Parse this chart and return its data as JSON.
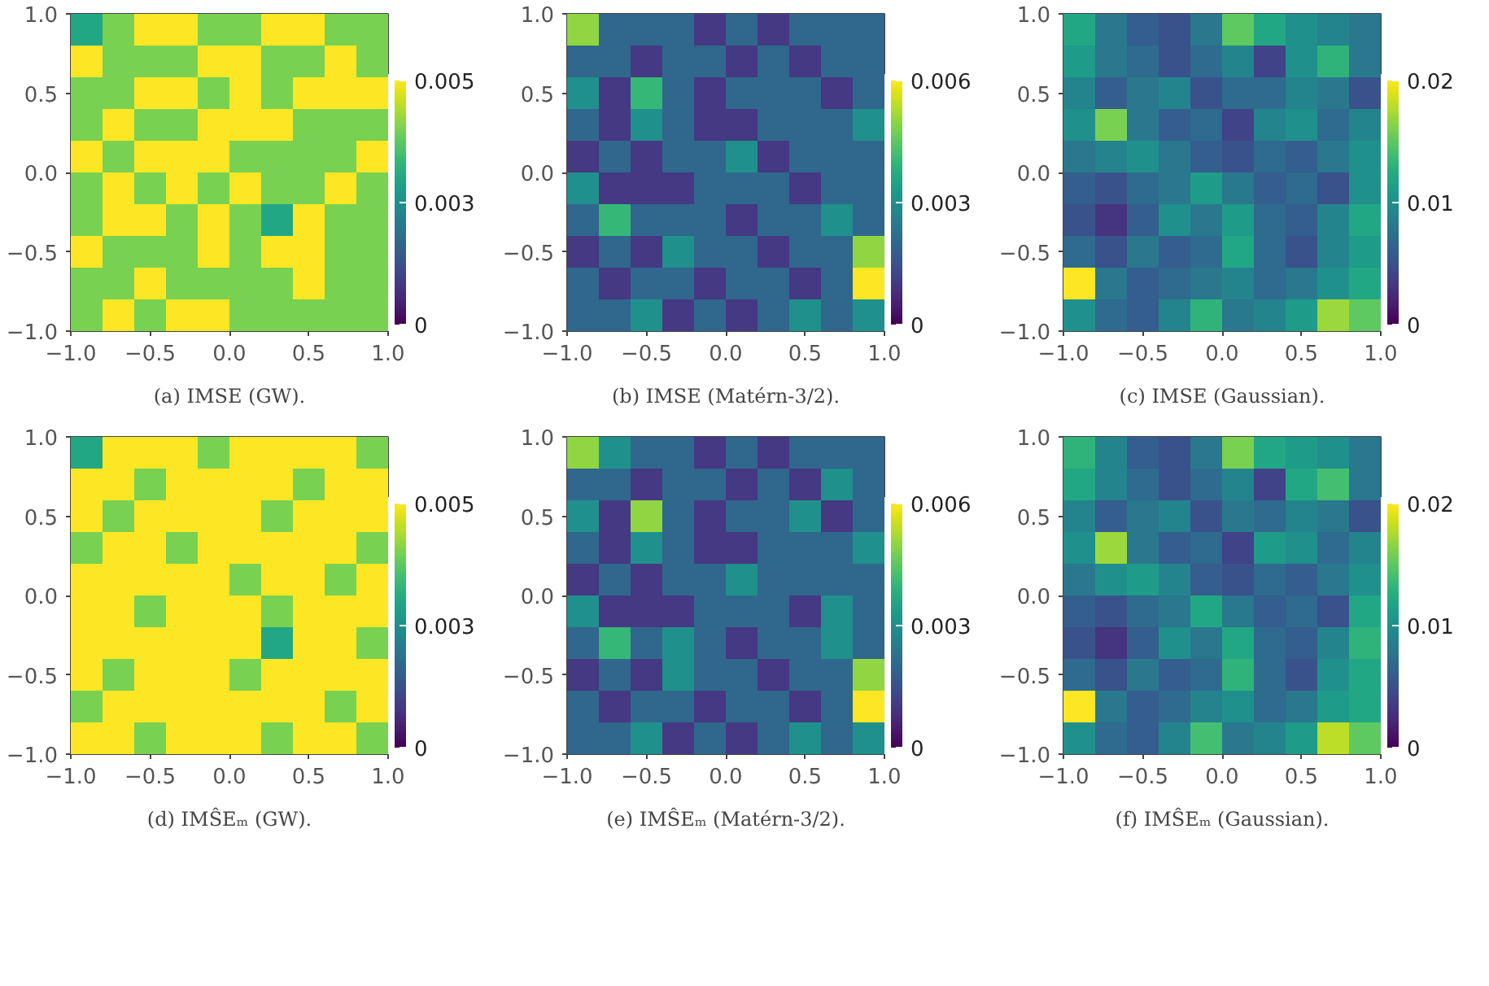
{
  "chart_data": [
    {
      "type": "heatmap",
      "title": "(a) IMSE (GW).",
      "xlim": [
        -1,
        1
      ],
      "ylim": [
        -1,
        1
      ],
      "xticks": [
        {
          "value": -1,
          "label": "−1.0"
        },
        {
          "value": -0.5,
          "label": "−0.5"
        },
        {
          "value": 0,
          "label": "0.0"
        },
        {
          "value": 0.5,
          "label": "0.5"
        },
        {
          "value": 1,
          "label": "1.0"
        }
      ],
      "yticks": [
        {
          "value": -1,
          "label": "−1.0"
        },
        {
          "value": -0.5,
          "label": "−0.5"
        },
        {
          "value": 0,
          "label": "0.0"
        },
        {
          "value": 0.5,
          "label": "0.5"
        },
        {
          "value": 1,
          "label": "1.0"
        }
      ],
      "clim": [
        0,
        0.005
      ],
      "cticks": [
        0,
        {
          "value": 0.0025,
          "label": "0.003"
        },
        0.005
      ],
      "x": [
        -0.9,
        -0.7,
        -0.5,
        -0.3,
        -0.1,
        0.1,
        0.3,
        0.5,
        0.7,
        0.9
      ],
      "y": [
        0.9,
        0.7,
        0.5,
        0.3,
        0.1,
        -0.1,
        -0.3,
        -0.5,
        -0.7,
        -0.9
      ],
      "cells": [
        [
          0.003,
          0.004,
          0.005,
          0.005,
          0.004,
          0.004,
          0.005,
          0.005,
          0.004,
          0.004
        ],
        [
          0.005,
          0.004,
          0.004,
          0.004,
          0.005,
          0.005,
          0.004,
          0.004,
          0.005,
          0.004
        ],
        [
          0.004,
          0.004,
          0.005,
          0.005,
          0.004,
          0.005,
          0.004,
          0.005,
          0.005,
          0.005
        ],
        [
          0.004,
          0.005,
          0.004,
          0.004,
          0.005,
          0.005,
          0.005,
          0.004,
          0.004,
          0.004
        ],
        [
          0.005,
          0.004,
          0.005,
          0.005,
          0.005,
          0.004,
          0.004,
          0.004,
          0.004,
          0.005
        ],
        [
          0.004,
          0.005,
          0.004,
          0.005,
          0.004,
          0.005,
          0.004,
          0.004,
          0.005,
          0.004
        ],
        [
          0.004,
          0.005,
          0.005,
          0.004,
          0.005,
          0.004,
          0.003,
          0.005,
          0.004,
          0.004
        ],
        [
          0.005,
          0.004,
          0.004,
          0.004,
          0.005,
          0.004,
          0.005,
          0.005,
          0.004,
          0.004
        ],
        [
          0.004,
          0.004,
          0.005,
          0.004,
          0.004,
          0.004,
          0.004,
          0.005,
          0.004,
          0.004
        ],
        [
          0.004,
          0.005,
          0.004,
          0.005,
          0.005,
          0.004,
          0.004,
          0.004,
          0.004,
          0.004
        ]
      ]
    },
    {
      "type": "heatmap",
      "title": "(b) IMSE (Matérn-3/2).",
      "xlim": [
        -1,
        1
      ],
      "ylim": [
        -1,
        1
      ],
      "xticks": [
        {
          "value": -1,
          "label": "−1.0"
        },
        {
          "value": -0.5,
          "label": "−0.5"
        },
        {
          "value": 0,
          "label": "0.0"
        },
        {
          "value": 0.5,
          "label": "0.5"
        },
        {
          "value": 1,
          "label": "1.0"
        }
      ],
      "yticks": [
        {
          "value": -1,
          "label": "−1.0"
        },
        {
          "value": -0.5,
          "label": "−0.5"
        },
        {
          "value": 0,
          "label": "0.0"
        },
        {
          "value": 0.5,
          "label": "0.5"
        },
        {
          "value": 1,
          "label": "1.0"
        }
      ],
      "clim": [
        0,
        0.006
      ],
      "cticks": [
        0,
        0.003,
        0.006
      ],
      "x": [
        -0.9,
        -0.7,
        -0.5,
        -0.3,
        -0.1,
        0.1,
        0.3,
        0.5,
        0.7,
        0.9
      ],
      "y": [
        0.9,
        0.7,
        0.5,
        0.3,
        0.1,
        -0.1,
        -0.3,
        -0.5,
        -0.7,
        -0.9
      ],
      "cells": [
        [
          0.005,
          0.002,
          0.002,
          0.002,
          0.001,
          0.002,
          0.001,
          0.002,
          0.002,
          0.002
        ],
        [
          0.002,
          0.002,
          0.001,
          0.002,
          0.002,
          0.001,
          0.002,
          0.001,
          0.002,
          0.002
        ],
        [
          0.003,
          0.001,
          0.004,
          0.002,
          0.001,
          0.002,
          0.002,
          0.002,
          0.001,
          0.002
        ],
        [
          0.002,
          0.001,
          0.003,
          0.002,
          0.001,
          0.001,
          0.002,
          0.002,
          0.002,
          0.003
        ],
        [
          0.001,
          0.002,
          0.001,
          0.002,
          0.002,
          0.003,
          0.001,
          0.002,
          0.002,
          0.002
        ],
        [
          0.003,
          0.001,
          0.001,
          0.001,
          0.002,
          0.002,
          0.002,
          0.001,
          0.002,
          0.002
        ],
        [
          0.002,
          0.004,
          0.002,
          0.002,
          0.002,
          0.001,
          0.002,
          0.002,
          0.003,
          0.002
        ],
        [
          0.001,
          0.002,
          0.001,
          0.003,
          0.002,
          0.002,
          0.001,
          0.002,
          0.002,
          0.005
        ],
        [
          0.002,
          0.001,
          0.002,
          0.002,
          0.001,
          0.002,
          0.002,
          0.001,
          0.002,
          0.006
        ],
        [
          0.002,
          0.002,
          0.003,
          0.001,
          0.002,
          0.001,
          0.002,
          0.003,
          0.002,
          0.003
        ]
      ]
    },
    {
      "type": "heatmap",
      "title": "(c) IMSE (Gaussian).",
      "xlim": [
        -1,
        1
      ],
      "ylim": [
        -1,
        1
      ],
      "xticks": [
        {
          "value": -1,
          "label": "−1.0"
        },
        {
          "value": -0.5,
          "label": "−0.5"
        },
        {
          "value": 0,
          "label": "0.0"
        },
        {
          "value": 0.5,
          "label": "0.5"
        },
        {
          "value": 1,
          "label": "1.0"
        }
      ],
      "yticks": [
        {
          "value": -1,
          "label": "−1.0"
        },
        {
          "value": -0.5,
          "label": "−0.5"
        },
        {
          "value": 0,
          "label": "0.0"
        },
        {
          "value": 0.5,
          "label": "0.5"
        },
        {
          "value": 1,
          "label": "1.0"
        }
      ],
      "clim": [
        0,
        0.02
      ],
      "cticks": [
        0,
        0.01,
        0.02
      ],
      "x": [
        -0.9,
        -0.7,
        -0.5,
        -0.3,
        -0.1,
        0.1,
        0.3,
        0.5,
        0.7,
        0.9
      ],
      "y": [
        0.9,
        0.7,
        0.5,
        0.3,
        0.1,
        -0.1,
        -0.3,
        -0.5,
        -0.7,
        -0.9
      ],
      "cells": [
        [
          0.012,
          0.008,
          0.006,
          0.005,
          0.008,
          0.015,
          0.012,
          0.01,
          0.009,
          0.008
        ],
        [
          0.011,
          0.008,
          0.007,
          0.005,
          0.007,
          0.009,
          0.004,
          0.01,
          0.013,
          0.008
        ],
        [
          0.009,
          0.006,
          0.008,
          0.009,
          0.005,
          0.007,
          0.007,
          0.009,
          0.008,
          0.005
        ],
        [
          0.01,
          0.016,
          0.008,
          0.006,
          0.007,
          0.004,
          0.009,
          0.01,
          0.007,
          0.009
        ],
        [
          0.008,
          0.009,
          0.01,
          0.008,
          0.006,
          0.005,
          0.007,
          0.006,
          0.008,
          0.01
        ],
        [
          0.006,
          0.005,
          0.007,
          0.008,
          0.011,
          0.008,
          0.006,
          0.007,
          0.005,
          0.01
        ],
        [
          0.005,
          0.003,
          0.006,
          0.01,
          0.008,
          0.011,
          0.007,
          0.006,
          0.009,
          0.012
        ],
        [
          0.007,
          0.005,
          0.008,
          0.006,
          0.007,
          0.012,
          0.007,
          0.005,
          0.009,
          0.011
        ],
        [
          0.02,
          0.008,
          0.006,
          0.007,
          0.008,
          0.009,
          0.007,
          0.008,
          0.01,
          0.012
        ],
        [
          0.01,
          0.007,
          0.006,
          0.009,
          0.013,
          0.008,
          0.009,
          0.011,
          0.017,
          0.015
        ]
      ]
    },
    {
      "type": "heatmap",
      "title": "(d) IMŜEₘ (GW).",
      "xlim": [
        -1,
        1
      ],
      "ylim": [
        -1,
        1
      ],
      "xticks": [
        {
          "value": -1,
          "label": "−1.0"
        },
        {
          "value": -0.5,
          "label": "−0.5"
        },
        {
          "value": 0,
          "label": "0.0"
        },
        {
          "value": 0.5,
          "label": "0.5"
        },
        {
          "value": 1,
          "label": "1.0"
        }
      ],
      "yticks": [
        {
          "value": -1,
          "label": "−1.0"
        },
        {
          "value": -0.5,
          "label": "−0.5"
        },
        {
          "value": 0,
          "label": "0.0"
        },
        {
          "value": 0.5,
          "label": "0.5"
        },
        {
          "value": 1,
          "label": "1.0"
        }
      ],
      "clim": [
        0,
        0.005
      ],
      "cticks": [
        0,
        {
          "value": 0.0025,
          "label": "0.003"
        },
        0.005
      ],
      "x": [
        -0.9,
        -0.7,
        -0.5,
        -0.3,
        -0.1,
        0.1,
        0.3,
        0.5,
        0.7,
        0.9
      ],
      "y": [
        0.9,
        0.7,
        0.5,
        0.3,
        0.1,
        -0.1,
        -0.3,
        -0.5,
        -0.7,
        -0.9
      ],
      "cells": [
        [
          0.003,
          0.005,
          0.005,
          0.005,
          0.004,
          0.005,
          0.005,
          0.005,
          0.005,
          0.004
        ],
        [
          0.005,
          0.005,
          0.004,
          0.005,
          0.005,
          0.005,
          0.005,
          0.004,
          0.005,
          0.005
        ],
        [
          0.005,
          0.004,
          0.005,
          0.005,
          0.005,
          0.005,
          0.004,
          0.005,
          0.005,
          0.005
        ],
        [
          0.004,
          0.005,
          0.005,
          0.004,
          0.005,
          0.005,
          0.005,
          0.005,
          0.005,
          0.004
        ],
        [
          0.005,
          0.005,
          0.005,
          0.005,
          0.005,
          0.004,
          0.005,
          0.005,
          0.004,
          0.005
        ],
        [
          0.005,
          0.005,
          0.004,
          0.005,
          0.005,
          0.005,
          0.004,
          0.005,
          0.005,
          0.005
        ],
        [
          0.005,
          0.005,
          0.005,
          0.005,
          0.005,
          0.005,
          0.003,
          0.005,
          0.005,
          0.004
        ],
        [
          0.005,
          0.004,
          0.005,
          0.005,
          0.005,
          0.004,
          0.005,
          0.005,
          0.005,
          0.005
        ],
        [
          0.004,
          0.005,
          0.005,
          0.005,
          0.005,
          0.005,
          0.005,
          0.005,
          0.004,
          0.005
        ],
        [
          0.005,
          0.005,
          0.004,
          0.005,
          0.005,
          0.005,
          0.004,
          0.005,
          0.005,
          0.004
        ]
      ]
    },
    {
      "type": "heatmap",
      "title": "(e) IMŜEₘ (Matérn-3/2).",
      "xlim": [
        -1,
        1
      ],
      "ylim": [
        -1,
        1
      ],
      "xticks": [
        {
          "value": -1,
          "label": "−1.0"
        },
        {
          "value": -0.5,
          "label": "−0.5"
        },
        {
          "value": 0,
          "label": "0.0"
        },
        {
          "value": 0.5,
          "label": "0.5"
        },
        {
          "value": 1,
          "label": "1.0"
        }
      ],
      "yticks": [
        {
          "value": -1,
          "label": "−1.0"
        },
        {
          "value": -0.5,
          "label": "−0.5"
        },
        {
          "value": 0,
          "label": "0.0"
        },
        {
          "value": 0.5,
          "label": "0.5"
        },
        {
          "value": 1,
          "label": "1.0"
        }
      ],
      "clim": [
        0,
        0.006
      ],
      "cticks": [
        0,
        0.003,
        0.006
      ],
      "x": [
        -0.9,
        -0.7,
        -0.5,
        -0.3,
        -0.1,
        0.1,
        0.3,
        0.5,
        0.7,
        0.9
      ],
      "y": [
        0.9,
        0.7,
        0.5,
        0.3,
        0.1,
        -0.1,
        -0.3,
        -0.5,
        -0.7,
        -0.9
      ],
      "cells": [
        [
          0.005,
          0.003,
          0.002,
          0.002,
          0.001,
          0.002,
          0.001,
          0.002,
          0.002,
          0.002
        ],
        [
          0.002,
          0.002,
          0.001,
          0.002,
          0.002,
          0.001,
          0.002,
          0.001,
          0.003,
          0.002
        ],
        [
          0.003,
          0.001,
          0.005,
          0.002,
          0.001,
          0.002,
          0.002,
          0.003,
          0.001,
          0.002
        ],
        [
          0.002,
          0.001,
          0.003,
          0.002,
          0.001,
          0.001,
          0.002,
          0.002,
          0.002,
          0.003
        ],
        [
          0.001,
          0.002,
          0.001,
          0.002,
          0.002,
          0.003,
          0.002,
          0.002,
          0.002,
          0.002
        ],
        [
          0.003,
          0.001,
          0.001,
          0.001,
          0.002,
          0.002,
          0.002,
          0.001,
          0.003,
          0.002
        ],
        [
          0.002,
          0.004,
          0.002,
          0.003,
          0.002,
          0.001,
          0.002,
          0.002,
          0.003,
          0.002
        ],
        [
          0.001,
          0.002,
          0.001,
          0.003,
          0.002,
          0.002,
          0.001,
          0.002,
          0.002,
          0.005
        ],
        [
          0.002,
          0.001,
          0.002,
          0.002,
          0.001,
          0.002,
          0.002,
          0.001,
          0.002,
          0.006
        ],
        [
          0.002,
          0.002,
          0.003,
          0.001,
          0.002,
          0.001,
          0.002,
          0.003,
          0.002,
          0.003
        ]
      ]
    },
    {
      "type": "heatmap",
      "title": "(f) IMŜEₘ (Gaussian).",
      "xlim": [
        -1,
        1
      ],
      "ylim": [
        -1,
        1
      ],
      "xticks": [
        {
          "value": -1,
          "label": "−1.0"
        },
        {
          "value": -0.5,
          "label": "−0.5"
        },
        {
          "value": 0,
          "label": "0.0"
        },
        {
          "value": 0.5,
          "label": "0.5"
        },
        {
          "value": 1,
          "label": "1.0"
        }
      ],
      "yticks": [
        {
          "value": -1,
          "label": "−1.0"
        },
        {
          "value": -0.5,
          "label": "−0.5"
        },
        {
          "value": 0,
          "label": "0.0"
        },
        {
          "value": 0.5,
          "label": "0.5"
        },
        {
          "value": 1,
          "label": "1.0"
        }
      ],
      "clim": [
        0,
        0.02
      ],
      "cticks": [
        0,
        0.01,
        0.02
      ],
      "x": [
        -0.9,
        -0.7,
        -0.5,
        -0.3,
        -0.1,
        0.1,
        0.3,
        0.5,
        0.7,
        0.9
      ],
      "y": [
        0.9,
        0.7,
        0.5,
        0.3,
        0.1,
        -0.1,
        -0.3,
        -0.5,
        -0.7,
        -0.9
      ],
      "cells": [
        [
          0.013,
          0.009,
          0.006,
          0.005,
          0.008,
          0.016,
          0.012,
          0.011,
          0.01,
          0.008
        ],
        [
          0.012,
          0.009,
          0.007,
          0.005,
          0.007,
          0.009,
          0.004,
          0.012,
          0.014,
          0.008
        ],
        [
          0.009,
          0.006,
          0.008,
          0.009,
          0.005,
          0.008,
          0.007,
          0.009,
          0.008,
          0.005
        ],
        [
          0.01,
          0.017,
          0.008,
          0.006,
          0.007,
          0.004,
          0.011,
          0.01,
          0.007,
          0.009
        ],
        [
          0.008,
          0.01,
          0.011,
          0.009,
          0.006,
          0.005,
          0.007,
          0.006,
          0.008,
          0.01
        ],
        [
          0.006,
          0.005,
          0.007,
          0.008,
          0.012,
          0.008,
          0.006,
          0.007,
          0.005,
          0.012
        ],
        [
          0.005,
          0.003,
          0.006,
          0.01,
          0.008,
          0.012,
          0.007,
          0.006,
          0.009,
          0.013
        ],
        [
          0.007,
          0.005,
          0.008,
          0.006,
          0.007,
          0.013,
          0.007,
          0.005,
          0.01,
          0.012
        ],
        [
          0.02,
          0.008,
          0.006,
          0.007,
          0.009,
          0.01,
          0.007,
          0.008,
          0.011,
          0.012
        ],
        [
          0.01,
          0.007,
          0.006,
          0.009,
          0.014,
          0.008,
          0.009,
          0.011,
          0.018,
          0.015
        ]
      ]
    }
  ]
}
